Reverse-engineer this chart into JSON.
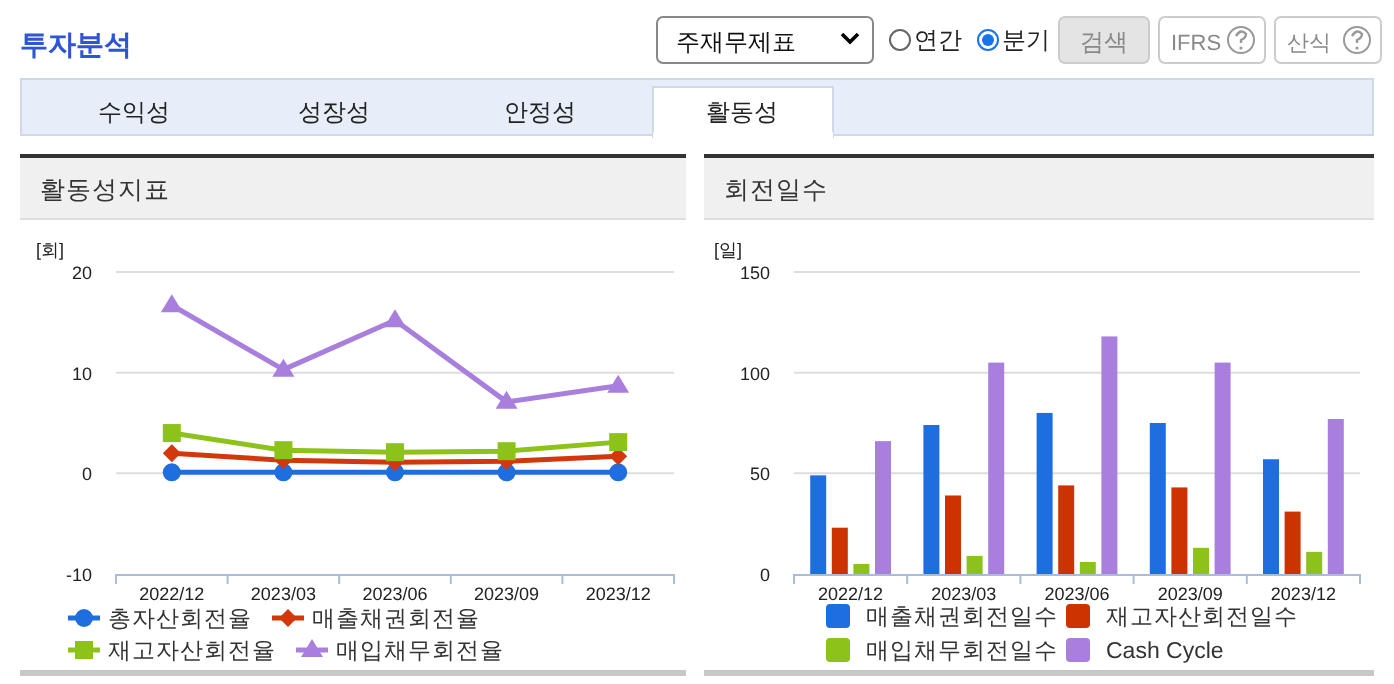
{
  "chart_data": [
    {
      "type": "other",
      "title": "투자분석",
      "annotations": [
        "주재무제표",
        "연간",
        "분기",
        "검색",
        "IFRS",
        "산식",
        "수익성",
        "성장성",
        "안정성",
        "활동성"
      ]
    },
    {
      "type": "line",
      "title": "활동성지표",
      "ylabel": "[회]",
      "categories": [
        "2022/12",
        "2023/03",
        "2023/06",
        "2023/09",
        "2023/12"
      ],
      "ylim": [
        -10,
        20
      ],
      "yticks": [
        -10,
        0,
        10,
        20
      ],
      "grid": "y",
      "legend": "bottom",
      "line_style": "solid",
      "series": [
        {
          "name": "총자산회전율",
          "color": "#1f6ee0",
          "marker": "circle",
          "values": [
            0.1,
            0.1,
            0.1,
            0.1,
            0.1
          ]
        },
        {
          "name": "매출채권회전율",
          "color": "#d2380c",
          "marker": "diamond",
          "values": [
            2.0,
            1.3,
            1.1,
            1.2,
            1.7
          ]
        },
        {
          "name": "재고자산회전율",
          "color": "#8cc21a",
          "marker": "square",
          "values": [
            4.0,
            2.3,
            2.1,
            2.2,
            3.1
          ]
        },
        {
          "name": "매입채무회전율",
          "color": "#a87fdc",
          "marker": "triangle",
          "values": [
            16.7,
            10.3,
            15.2,
            7.1,
            8.7
          ]
        }
      ]
    },
    {
      "type": "bar",
      "title": "회전일수",
      "ylabel": "[일]",
      "categories": [
        "2022/12",
        "2023/03",
        "2023/06",
        "2023/09",
        "2023/12"
      ],
      "ylim": [
        0,
        150
      ],
      "yticks": [
        0,
        50,
        100,
        150
      ],
      "grid": "y",
      "legend": "bottom",
      "series": [
        {
          "name": "매출채권회전일수",
          "color": "#1f6ee0",
          "values": [
            49,
            74,
            80,
            75,
            57
          ]
        },
        {
          "name": "재고자산회전일수",
          "color": "#cc3300",
          "values": [
            23,
            39,
            44,
            43,
            31
          ]
        },
        {
          "name": "매입채무회전일수",
          "color": "#8cc21a",
          "values": [
            5,
            9,
            6,
            13,
            11
          ]
        },
        {
          "name": "Cash Cycle",
          "color": "#a87fdc",
          "values": [
            66,
            105,
            118,
            105,
            77
          ]
        }
      ]
    }
  ]
}
